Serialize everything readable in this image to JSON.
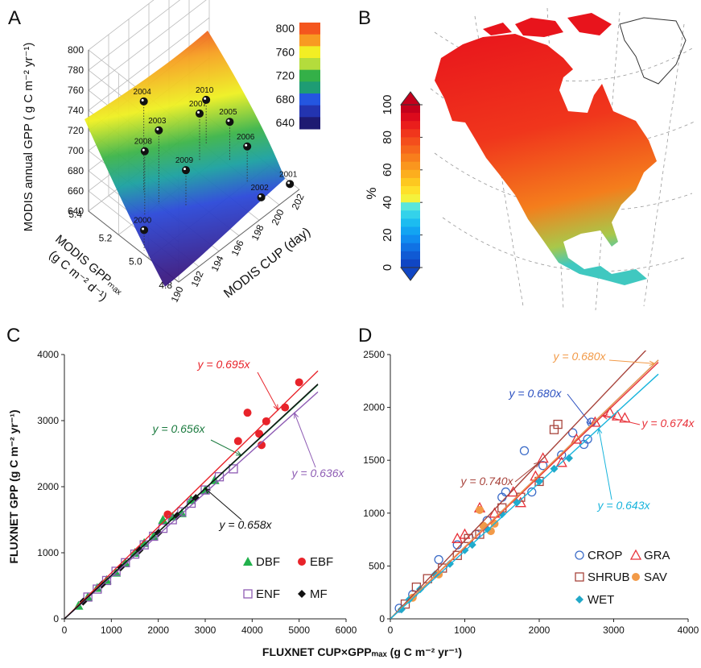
{
  "chart_data": [
    {
      "type": "scatter3d",
      "panel": "A",
      "xlabel": "MODIS CUP (day)",
      "ylabel": [
        "MODIS GPPₘₐₓ",
        "(g C m⁻² d⁻¹)"
      ],
      "zlabel": "MODIS annual GPP ( g C m⁻² yr⁻¹)",
      "xlim": [
        190,
        202
      ],
      "xticks": [
        190,
        192,
        194,
        196,
        198,
        200,
        202
      ],
      "ylim": [
        4.8,
        5.4
      ],
      "yticks": [
        4.8,
        {
          "value": 5,
          "label": "5.0"
        },
        5.2,
        5.4
      ],
      "zlim": [
        640,
        800
      ],
      "zticks": [
        640,
        660,
        680,
        700,
        720,
        740,
        760,
        780,
        800
      ],
      "points": {
        "labels": [
          "2000",
          "2001",
          "2002",
          "2003",
          "2004",
          "2005",
          "2006",
          "2007",
          "2008",
          "2009",
          "2010"
        ],
        "x": [
          190.3,
          201.8,
          199.7,
          194,
          194,
          200.3,
          199.8,
          198.8,
          192.6,
          195.2,
          200.2
        ],
        "y": [
          5.05,
          4.85,
          4.9,
          5.2,
          5.3,
          5.15,
          5.0,
          5.25,
          5.2,
          5.1,
          5.3
        ],
        "z": [
          660,
          641,
          638,
          713,
          730,
          679,
          676,
          687,
          703,
          676,
          684
        ]
      },
      "colorbar": {
        "ticks": [
          640,
          680,
          720,
          760,
          800
        ],
        "colors": [
          "#f4561e",
          "#f89a22",
          "#f2ee24",
          "#b4dc3c",
          "#34b048",
          "#1e9c74",
          "#2456e0",
          "#2334b0",
          "#1e1a72"
        ]
      }
    },
    {
      "type": "map",
      "panel": "B",
      "colorbar": {
        "label": "%",
        "lim": [
          0,
          100
        ],
        "ticks": [
          0,
          20,
          40,
          60,
          80,
          100
        ],
        "colors": [
          "#c4001c",
          "#dc0a1c",
          "#ea1e1c",
          "#f0361c",
          "#f44e1c",
          "#f6661c",
          "#f87e1c",
          "#fa961e",
          "#fcae1e",
          "#fdc820",
          "#fee02a",
          "#f4f23c",
          "#5ae6dc",
          "#34d2ea",
          "#1cbcf0",
          "#12a4f2",
          "#108cf0",
          "#1072e4",
          "#105ad4",
          "#1046c4"
        ]
      }
    },
    {
      "type": "scatter",
      "panel": "C",
      "xlabel": "FLUXNET CUP×GPPₘₐₓ (g C m⁻² yr⁻¹)",
      "ylabel": "FLUXNET GPP (g C m⁻² yr⁻¹)",
      "xlim": [
        0,
        6000
      ],
      "xticks": [
        0,
        1000,
        2000,
        3000,
        4000,
        5000,
        6000
      ],
      "ylim": [
        0,
        4000
      ],
      "yticks": [
        0,
        1000,
        2000,
        3000,
        4000
      ],
      "series": [
        {
          "name": "DBF",
          "color": "#22b14c",
          "marker": "triangle",
          "filled": true,
          "x": [
            300,
            500,
            700,
            900,
            1100,
            1300,
            1500,
            1700,
            1900,
            2100,
            2300,
            2500,
            2700,
            3000,
            3200
          ],
          "values": [
            200,
            330,
            470,
            590,
            700,
            850,
            1000,
            1150,
            1250,
            1500,
            1550,
            1600,
            1800,
            1950,
            2100
          ],
          "fit": {
            "slope": 0.656,
            "label": "y = 0.656x",
            "color": "#1a7a3e"
          }
        },
        {
          "name": "EBF",
          "color": "#e8232a",
          "marker": "circle",
          "filled": true,
          "x": [
            2200,
            3700,
            3900,
            4150,
            4200,
            4300,
            4700,
            5000
          ],
          "values": [
            1580,
            2690,
            3120,
            2800,
            2630,
            2990,
            3200,
            3580
          ],
          "fit": {
            "slope": 0.695,
            "label": "y = 0.695x",
            "color": "#e8232a"
          }
        },
        {
          "name": "ENF",
          "color": "#8e5cb4",
          "marker": "square",
          "filled": false,
          "x": [
            500,
            700,
            900,
            1100,
            1300,
            1500,
            1700,
            1900,
            2100,
            2300,
            2500,
            2700,
            3000,
            3300,
            3600
          ],
          "values": [
            330,
            450,
            580,
            720,
            850,
            980,
            1120,
            1250,
            1370,
            1500,
            1620,
            1750,
            1950,
            2150,
            2270
          ],
          "fit": {
            "slope": 0.636,
            "label": "y = 0.636x",
            "color": "#8e5cb4"
          }
        },
        {
          "name": "MF",
          "color": "#111111",
          "marker": "diamond",
          "filled": true,
          "x": [
            400,
            800,
            1200,
            1600,
            2000,
            2400,
            2800
          ],
          "values": [
            260,
            520,
            780,
            1040,
            1300,
            1560,
            1830
          ],
          "fit": {
            "slope": 0.658,
            "label": "y = 0.658x",
            "color": "#111111"
          }
        }
      ]
    },
    {
      "type": "scatter",
      "panel": "D",
      "xlim": [
        0,
        4000
      ],
      "xticks": [
        0,
        1000,
        2000,
        3000,
        4000
      ],
      "ylim": [
        0,
        2500
      ],
      "yticks": [
        0,
        500,
        1000,
        1500,
        2000,
        2500
      ],
      "series": [
        {
          "name": "CROP",
          "color": "#3c6cc8",
          "marker": "circle",
          "filled": false,
          "x": [
            120,
            300,
            650,
            900,
            1150,
            1300,
            1500,
            1550,
            1800,
            1900,
            2050,
            2300,
            2450,
            2600,
            2650,
            2700
          ],
          "values": [
            100,
            230,
            560,
            700,
            800,
            930,
            1150,
            1200,
            1590,
            1200,
            1450,
            1550,
            1760,
            1650,
            1700,
            1860
          ],
          "fit": {
            "slope": 0.68,
            "label": "y = 0.680x",
            "color": "#2a4fc0"
          }
        },
        {
          "name": "GRA",
          "color": "#e8323a",
          "marker": "triangle",
          "filled": false,
          "x": [
            900,
            1000,
            1200,
            1400,
            1650,
            1750,
            1950,
            2050,
            2300,
            2500,
            2750,
            2950,
            3050,
            3150
          ],
          "values": [
            760,
            800,
            1050,
            1000,
            1200,
            1100,
            1350,
            1520,
            1480,
            1700,
            1860,
            1950,
            1920,
            1900
          ],
          "fit": {
            "slope": 0.674,
            "label": "y = 0.674x",
            "color": "#e8323a"
          }
        },
        {
          "name": "SHRUB",
          "color": "#a8443c",
          "marker": "square",
          "filled": false,
          "x": [
            200,
            350,
            500,
            700,
            900,
            1050,
            1200,
            1500,
            1750,
            2000,
            2200,
            2250
          ],
          "values": [
            140,
            300,
            380,
            480,
            600,
            760,
            800,
            1050,
            1150,
            1300,
            1790,
            1840
          ],
          "fit": {
            "slope": 0.74,
            "label": "y = 0.740x",
            "color": "#a8443c"
          }
        },
        {
          "name": "SAV",
          "color": "#f29a48",
          "marker": "circle",
          "filled": true,
          "x": [
            300,
            650,
            1200,
            1250,
            1350,
            1400
          ],
          "values": [
            200,
            420,
            1030,
            880,
            830,
            900
          ],
          "fit": {
            "slope": 0.68,
            "label": "y = 0.680x",
            "color": "#f29a48"
          }
        },
        {
          "name": "WET",
          "color": "#22a8c8",
          "marker": "diamond",
          "filled": true,
          "x": [
            150,
            250,
            400,
            600,
            800,
            1000,
            1100,
            1300,
            1500,
            1700,
            2000,
            2200,
            2400
          ],
          "values": [
            90,
            180,
            280,
            420,
            520,
            650,
            700,
            850,
            990,
            1100,
            1300,
            1420,
            1520
          ],
          "fit": {
            "slope": 0.643,
            "label": "y = 0.643x",
            "color": "#18b4dc"
          }
        }
      ]
    }
  ]
}
